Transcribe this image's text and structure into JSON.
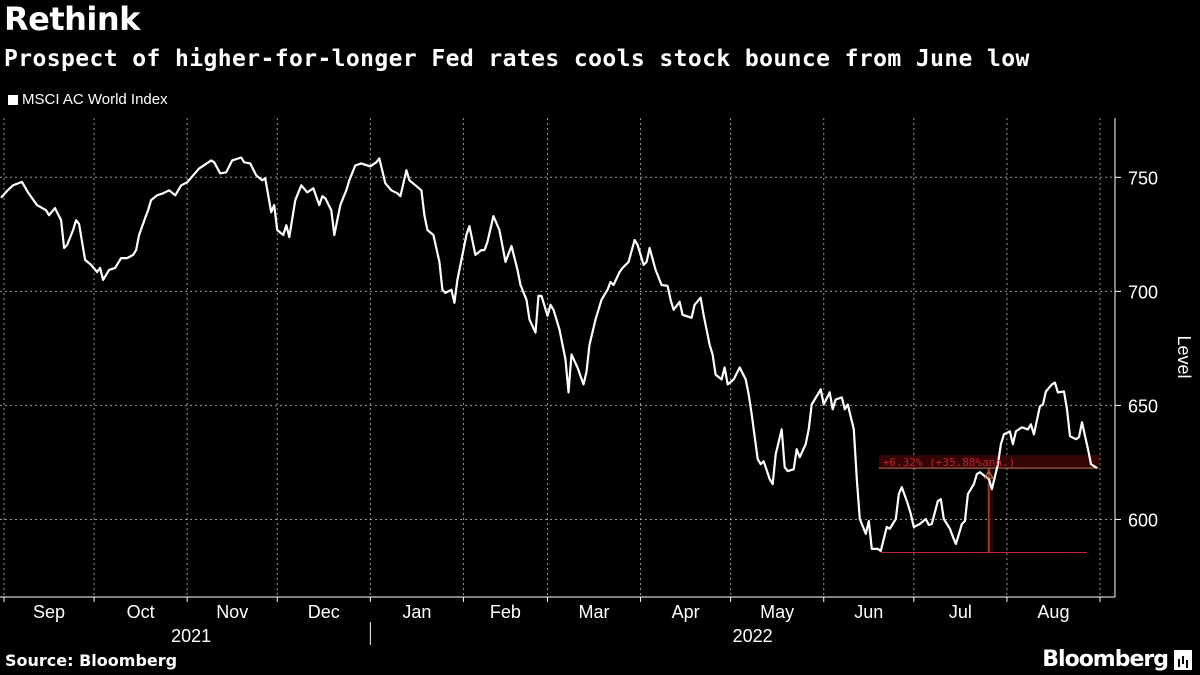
{
  "header": {
    "title": "Rethink",
    "subtitle": "Prospect of higher-for-longer Fed rates cools stock bounce from June low"
  },
  "footer": {
    "source": "Source: Bloomberg",
    "logo": "Bloomberg"
  },
  "colors": {
    "background": "#000000",
    "line": "#ffffff",
    "annotation": "#c0262b",
    "grid": "#bfbfbf"
  },
  "chart_data": {
    "type": "line",
    "title": "Rethink",
    "subtitle": "Prospect of higher-for-longer Fed rates cools stock bounce from June low",
    "ylabel": "Level",
    "ylim": [
      566,
      776
    ],
    "yticks": [
      600,
      650,
      700,
      750
    ],
    "y_axis_position": "right",
    "grid": true,
    "legend": "top-left",
    "xticks": [
      {
        "date": "2021-09-01",
        "label": "Sep"
      },
      {
        "date": "2021-10-01",
        "label": "Oct"
      },
      {
        "date": "2021-11-01",
        "label": "Nov"
      },
      {
        "date": "2021-12-01",
        "label": "Dec"
      },
      {
        "date": "2022-01-01",
        "label": "Jan"
      },
      {
        "date": "2022-02-01",
        "label": "Feb"
      },
      {
        "date": "2022-03-01",
        "label": "Mar"
      },
      {
        "date": "2022-04-01",
        "label": "Apr"
      },
      {
        "date": "2022-05-01",
        "label": "May"
      },
      {
        "date": "2022-06-01",
        "label": "Jun"
      },
      {
        "date": "2022-07-01",
        "label": "Jul"
      },
      {
        "date": "2022-08-01",
        "label": "Aug"
      }
    ],
    "years": [
      "2021",
      "2022"
    ],
    "annotation": {
      "text": "+6.32% (+35.88%ann.)",
      "from_date": "2022-06-20",
      "from_value": 585.5,
      "to_date": "2022-08-31",
      "to_value": 622.5,
      "marker_date": "2022-07-26"
    },
    "series": [
      {
        "name": "MSCI AC World Index",
        "x": [
          "2021-08-31",
          "2021-09-02",
          "2021-09-04",
          "2021-09-07",
          "2021-09-09",
          "2021-09-12",
          "2021-09-15",
          "2021-09-16",
          "2021-09-18",
          "2021-09-20",
          "2021-09-21",
          "2021-09-22",
          "2021-09-24",
          "2021-09-25",
          "2021-09-26",
          "2021-09-28",
          "2021-09-30",
          "2021-10-02",
          "2021-10-03",
          "2021-10-04",
          "2021-10-06",
          "2021-10-08",
          "2021-10-10",
          "2021-10-12",
          "2021-10-14",
          "2021-10-15",
          "2021-10-16",
          "2021-10-18",
          "2021-10-19",
          "2021-10-20",
          "2021-10-22",
          "2021-10-24",
          "2021-10-26",
          "2021-10-28",
          "2021-10-30",
          "2021-11-01",
          "2021-11-03",
          "2021-11-05",
          "2021-11-09",
          "2021-11-10",
          "2021-11-12",
          "2021-11-14",
          "2021-11-16",
          "2021-11-19",
          "2021-11-20",
          "2021-11-22",
          "2021-11-24",
          "2021-11-26",
          "2021-11-27",
          "2021-11-29",
          "2021-11-30",
          "2021-12-01",
          "2021-12-03",
          "2021-12-04",
          "2021-12-05",
          "2021-12-07",
          "2021-12-09",
          "2021-12-11",
          "2021-12-13",
          "2021-12-15",
          "2021-12-16",
          "2021-12-17",
          "2021-12-19",
          "2021-12-20",
          "2021-12-22",
          "2021-12-24",
          "2021-12-25",
          "2021-12-27",
          "2021-12-29",
          "2022-01-01",
          "2022-01-03",
          "2022-01-04",
          "2022-01-06",
          "2022-01-08",
          "2022-01-10",
          "2022-01-11",
          "2022-01-13",
          "2022-01-14",
          "2022-01-16",
          "2022-01-18",
          "2022-01-19",
          "2022-01-20",
          "2022-01-22",
          "2022-01-24",
          "2022-01-25",
          "2022-01-26",
          "2022-01-28",
          "2022-01-29",
          "2022-01-30",
          "2022-02-01",
          "2022-02-02",
          "2022-02-03",
          "2022-02-05",
          "2022-02-07",
          "2022-02-08",
          "2022-02-09",
          "2022-02-11",
          "2022-02-13",
          "2022-02-15",
          "2022-02-17",
          "2022-02-19",
          "2022-02-20",
          "2022-02-22",
          "2022-02-23",
          "2022-02-25",
          "2022-02-26",
          "2022-02-27",
          "2022-03-01",
          "2022-03-02",
          "2022-03-03",
          "2022-03-05",
          "2022-03-07",
          "2022-03-08",
          "2022-03-09",
          "2022-03-11",
          "2022-03-13",
          "2022-03-14",
          "2022-03-15",
          "2022-03-17",
          "2022-03-19",
          "2022-03-21",
          "2022-03-22",
          "2022-03-23",
          "2022-03-25",
          "2022-03-26",
          "2022-03-28",
          "2022-03-30",
          "2022-03-31",
          "2022-04-02",
          "2022-04-03",
          "2022-04-04",
          "2022-04-06",
          "2022-04-08",
          "2022-04-10",
          "2022-04-11",
          "2022-04-12",
          "2022-04-14",
          "2022-04-15",
          "2022-04-18",
          "2022-04-19",
          "2022-04-21",
          "2022-04-22",
          "2022-04-24",
          "2022-04-25",
          "2022-04-26",
          "2022-04-28",
          "2022-04-29",
          "2022-04-30",
          "2022-05-02",
          "2022-05-04",
          "2022-05-06",
          "2022-05-07",
          "2022-05-08",
          "2022-05-10",
          "2022-05-11",
          "2022-05-12",
          "2022-05-14",
          "2022-05-15",
          "2022-05-16",
          "2022-05-18",
          "2022-05-19",
          "2022-05-20",
          "2022-05-22",
          "2022-05-23",
          "2022-05-24",
          "2022-05-26",
          "2022-05-27",
          "2022-05-28",
          "2022-05-30",
          "2022-05-31",
          "2022-06-01",
          "2022-06-03",
          "2022-06-04",
          "2022-06-05",
          "2022-06-07",
          "2022-06-08",
          "2022-06-09",
          "2022-06-11",
          "2022-06-12",
          "2022-06-13",
          "2022-06-15",
          "2022-06-16",
          "2022-06-17",
          "2022-06-19",
          "2022-06-20",
          "2022-06-21",
          "2022-06-22",
          "2022-06-23",
          "2022-06-25",
          "2022-06-26",
          "2022-06-27",
          "2022-06-29",
          "2022-06-30",
          "2022-07-01",
          "2022-07-03",
          "2022-07-05",
          "2022-07-06",
          "2022-07-07",
          "2022-07-09",
          "2022-07-10",
          "2022-07-11",
          "2022-07-13",
          "2022-07-14",
          "2022-07-15",
          "2022-07-17",
          "2022-07-18",
          "2022-07-19",
          "2022-07-21",
          "2022-07-22",
          "2022-07-23",
          "2022-07-25",
          "2022-07-26",
          "2022-07-27",
          "2022-07-29",
          "2022-07-30",
          "2022-07-31",
          "2022-08-02",
          "2022-08-03",
          "2022-08-04",
          "2022-08-06",
          "2022-08-08",
          "2022-08-09",
          "2022-08-10",
          "2022-08-12",
          "2022-08-13",
          "2022-08-14",
          "2022-08-16",
          "2022-08-17",
          "2022-08-18",
          "2022-08-20",
          "2022-08-21",
          "2022-08-22",
          "2022-08-24",
          "2022-08-25",
          "2022-08-26",
          "2022-08-28",
          "2022-08-29",
          "2022-08-31"
        ],
        "values": [
          741,
          744,
          746.5,
          748,
          743.4,
          737.8,
          735.6,
          733.4,
          736.5,
          731.2,
          719,
          720.3,
          726.9,
          731.2,
          729.5,
          713.8,
          711.6,
          708.5,
          710.3,
          705,
          709.4,
          710.3,
          714.6,
          714.6,
          716,
          718.1,
          724.7,
          732.1,
          735.6,
          740,
          742.1,
          743,
          744.3,
          742.1,
          746.5,
          747.8,
          750.9,
          753.9,
          757.4,
          756.6,
          751.7,
          752.2,
          757.4,
          758.7,
          756.6,
          756.1,
          750.9,
          748.7,
          749.6,
          734.7,
          737.8,
          726.9,
          724.7,
          729,
          723.8,
          740,
          746.5,
          743.4,
          745.2,
          737.8,
          741.7,
          740.8,
          735.6,
          724.7,
          737.8,
          744.3,
          748.7,
          755.2,
          756.1,
          754.8,
          756.6,
          758.3,
          747.4,
          744.3,
          743,
          741.7,
          753.1,
          748.7,
          746.5,
          744.3,
          733.4,
          726.9,
          724.7,
          712.9,
          700.7,
          699.3,
          700.7,
          695,
          705,
          718.1,
          724.7,
          728.6,
          716,
          718.1,
          718.1,
          721.6,
          733,
          726.9,
          712.9,
          719.9,
          709.4,
          702.8,
          696.3,
          687.6,
          681.9,
          698,
          698,
          689.3,
          694.1,
          691.9,
          683.2,
          670.1,
          655.7,
          672.3,
          666.6,
          659.2,
          664.8,
          676.6,
          687.6,
          696.3,
          700.7,
          704.1,
          702.8,
          708.5,
          710.3,
          712.9,
          722.5,
          720.3,
          711.6,
          712.9,
          719,
          709.4,
          702.8,
          702.4,
          696.3,
          691.9,
          695.4,
          689.7,
          688.4,
          694.1,
          697.2,
          689.7,
          676.6,
          672.3,
          663.5,
          661.4,
          666.6,
          659.2,
          661.4,
          666.6,
          661.4,
          654.8,
          646.1,
          626.4,
          624.2,
          625.5,
          617.7,
          615.5,
          628.6,
          639.5,
          622.9,
          621.2,
          622,
          630.8,
          627.3,
          633,
          639.5,
          650.4,
          654.8,
          657,
          650.4,
          655.7,
          648.3,
          652.6,
          653.5,
          648.3,
          650.4,
          639.5,
          617.7,
          600.2,
          593.7,
          599.3,
          587.1,
          587.1,
          586.2,
          591.5,
          596.7,
          595.9,
          600.2,
          611.1,
          614.2,
          606.8,
          602.4,
          596.7,
          598,
          600.2,
          597.6,
          598,
          608,
          608.9,
          600.2,
          595.9,
          592.4,
          589.3,
          598,
          599.3,
          611.1,
          615.5,
          619.9,
          620.7,
          618.6,
          617.7,
          613.3,
          624.2,
          633,
          637.3,
          638.6,
          633,
          638.6,
          640.4,
          639.5,
          641.7,
          637.3,
          649.6,
          650.4,
          656.1,
          659.2,
          660,
          655.7,
          656.1,
          648.3,
          636.5,
          635.2,
          636.1,
          642.6,
          630.8,
          624.2,
          622.5
        ]
      }
    ]
  }
}
